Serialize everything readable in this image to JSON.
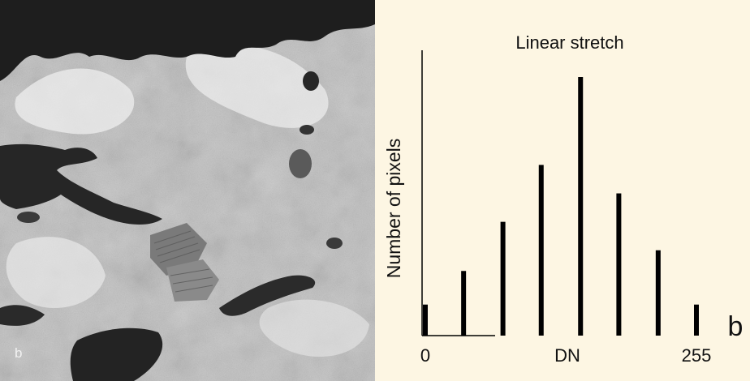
{
  "photo": {
    "label": "b"
  },
  "chart_data": {
    "type": "bar",
    "title": "Linear stretch",
    "xlabel": "DN",
    "ylabel": "Number of pixels",
    "panel_label": "b",
    "x_tick_labels": [
      {
        "value": 0,
        "label": "0"
      },
      {
        "value": 255,
        "label": "255"
      }
    ],
    "xlim": [
      0,
      255
    ],
    "ylim": [
      0,
      100
    ],
    "x": [
      0,
      36,
      73,
      109,
      146,
      182,
      219,
      255
    ],
    "values": [
      12,
      25,
      44,
      66,
      100,
      55,
      33,
      12
    ],
    "bar_color": "#000000",
    "background": "#fdf6e3"
  }
}
